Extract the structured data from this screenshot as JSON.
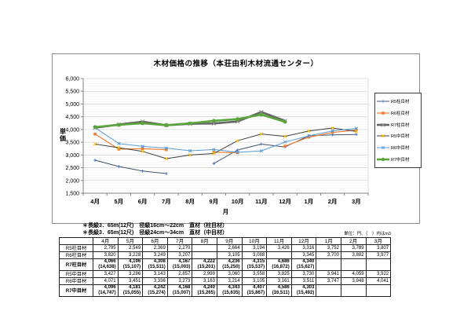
{
  "chart_data": {
    "type": "line",
    "title": "木材価格の推移（本荘由利木材流通センター）",
    "xlabel": "月",
    "ylabel": "単価",
    "ylim": [
      1500,
      6000
    ],
    "ytick_step": 500,
    "ytick_minor_step": 100,
    "grid": true,
    "legend_position": "right",
    "categories": [
      "4月",
      "5月",
      "6月",
      "7月",
      "8月",
      "9月",
      "10月",
      "11月",
      "12月",
      "1月",
      "2月",
      "3月"
    ],
    "series": [
      {
        "name": "R5柱目材",
        "color": "#44546a",
        "marker": "plus",
        "marker_color": "#4472c4",
        "width": 1,
        "values": [
          2795,
          2549,
          2369,
          2270,
          null,
          2664,
          3194,
          3426,
          3316,
          3752,
          3789,
          3807
        ]
      },
      {
        "name": "R6柱目材",
        "color": "#ed7d31",
        "marker": "square",
        "marker_color": "#ed7d31",
        "width": 1.2,
        "values": [
          3820,
          3228,
          3249,
          3207,
          null,
          3105,
          3088,
          null,
          3345,
          3700,
          3882,
          3977
        ]
      },
      {
        "name": "R7柱目材",
        "color": "#666666",
        "marker": "x",
        "marker_color": "#8c8c8c",
        "width": 2.6,
        "values": [
          4066,
          4196,
          4308,
          4167,
          4222,
          4236,
          4315,
          4686,
          4340,
          null,
          null,
          null
        ]
      },
      {
        "name": "R5中目材",
        "color": "#3f3f3f",
        "marker": "x",
        "marker_color": "#ffc000",
        "width": 1,
        "values": [
          3427,
          3286,
          3143,
          2857,
          2999,
          3060,
          3558,
          3825,
          3730,
          3941,
          4059,
          3922
        ]
      },
      {
        "name": "R6中目材",
        "color": "#5b9bd5",
        "marker": "x",
        "marker_color": "#5b9bd5",
        "width": 1,
        "values": [
          4071,
          3451,
          3336,
          3273,
          3163,
          3214,
          3105,
          3161,
          3511,
          3747,
          3948,
          4041
        ]
      },
      {
        "name": "R7中目材",
        "color": "#5aa43c",
        "marker": "circle",
        "marker_color": "#5aa43c",
        "width": 2.6,
        "values": [
          4096,
          4181,
          4242,
          4168,
          4240,
          4343,
          4407,
          4586,
          4303,
          null,
          null,
          null
        ]
      }
    ]
  },
  "notes": [
    "＊長級3．65m(12尺)　径級16cm～22cm　直材（柱目材）",
    "＊長級3．65m(12尺)　径級24cm～34cm　直材（中目材）"
  ],
  "unit_note": "単位：円、（　）内はm3",
  "table": {
    "columns": [
      "4月",
      "5月",
      "6月",
      "7月",
      "8月",
      "9月",
      "10月",
      "11月",
      "12月",
      "1月",
      "2月",
      "3月"
    ],
    "rows": [
      {
        "label": "R5柱目材",
        "bold": false,
        "values": [
          "2,795",
          "2,549",
          "2,369",
          "2,270",
          "",
          "2,664",
          "3,194",
          "3,426",
          "3,316",
          "3,752",
          "3,789",
          "3,807"
        ]
      },
      {
        "label": "R6柱目材",
        "bold": false,
        "values": [
          "3,820",
          "3,228",
          "3,249",
          "3,207",
          "",
          "3,105",
          "3,088",
          "",
          "3,345",
          "3,700",
          "3,882",
          "3,977"
        ]
      },
      {
        "label": "R7柱目材",
        "bold": true,
        "values": [
          "4,066",
          "4,196",
          "4,308",
          "4,167",
          "4,222",
          "4,236",
          "4,315",
          "4,686",
          "4,340",
          "",
          "",
          ""
        ],
        "sub": [
          "(14,638)",
          "(15,107)",
          "(15,511)",
          "(15,003)",
          "(15,201)",
          "(15,250)",
          "(15,537)",
          "(16,872)",
          "(15,627)",
          "",
          "",
          ""
        ]
      },
      {
        "label": "R5中目材",
        "bold": false,
        "values": [
          "3,427",
          "3,286",
          "3,143",
          "2,857",
          "2,999",
          "3,060",
          "3,558",
          "3,825",
          "3,730",
          "3,941",
          "4,059",
          "3,922"
        ]
      },
      {
        "label": "R6中目材",
        "bold": false,
        "values": [
          "4,071",
          "3,451",
          "3,336",
          "3,273",
          "3,163",
          "3,214",
          "3,105",
          "3,161",
          "3,511",
          "3,747",
          "3,948",
          "4,041"
        ]
      },
      {
        "label": "R7中目材",
        "bold": true,
        "values": [
          "4,096",
          "4,181",
          "4,242",
          "4,168",
          "4,240",
          "4,343",
          "4,407",
          "4,586",
          "4,303",
          "",
          "",
          ""
        ],
        "sub": [
          "(14,747)",
          "(15,055)",
          "(15,274)",
          "(15,007)",
          "(15,265)",
          "(15,635)",
          "(15,867)",
          "(16,511)",
          "(15,492)",
          "",
          "",
          ""
        ]
      }
    ]
  }
}
